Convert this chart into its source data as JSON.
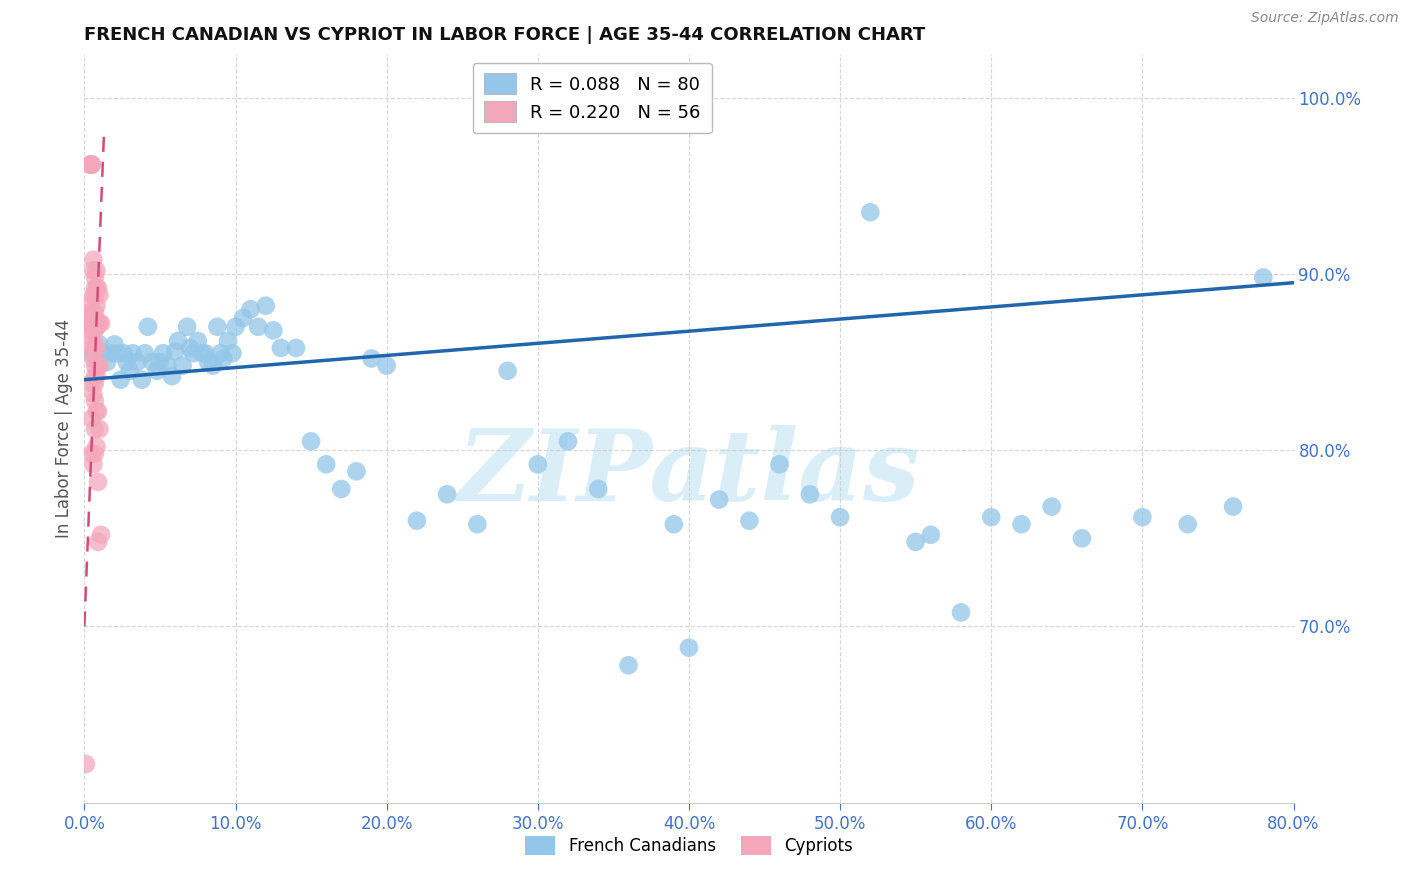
{
  "title": "FRENCH CANADIAN VS CYPRIOT IN LABOR FORCE | AGE 35-44 CORRELATION CHART",
  "source": "Source: ZipAtlas.com",
  "ylabel_left": "In Labor Force | Age 35-44",
  "xlim": [
    0.0,
    0.8
  ],
  "ylim": [
    0.6,
    1.025
  ],
  "blue_R": 0.088,
  "blue_N": 80,
  "pink_R": 0.22,
  "pink_N": 56,
  "blue_color": "#93c6e8",
  "blue_line_color": "#2166ac",
  "pink_color": "#f4a7bb",
  "pink_line_color": "#d44a7a",
  "watermark": "ZIPatlas",
  "watermark_color": "#daeef8",
  "legend_label_blue": "French Canadians",
  "legend_label_pink": "Cypriots",
  "blue_x": [
    0.005,
    0.008,
    0.01,
    0.012,
    0.015,
    0.018,
    0.02,
    0.022,
    0.024,
    0.026,
    0.028,
    0.03,
    0.032,
    0.035,
    0.038,
    0.04,
    0.042,
    0.045,
    0.048,
    0.05,
    0.052,
    0.055,
    0.058,
    0.06,
    0.062,
    0.065,
    0.068,
    0.07,
    0.072,
    0.075,
    0.078,
    0.08,
    0.082,
    0.085,
    0.088,
    0.09,
    0.092,
    0.095,
    0.098,
    0.1,
    0.105,
    0.11,
    0.115,
    0.12,
    0.125,
    0.13,
    0.14,
    0.15,
    0.16,
    0.17,
    0.18,
    0.19,
    0.2,
    0.22,
    0.24,
    0.26,
    0.28,
    0.3,
    0.32,
    0.34,
    0.36,
    0.39,
    0.4,
    0.42,
    0.44,
    0.46,
    0.48,
    0.5,
    0.52,
    0.55,
    0.56,
    0.58,
    0.6,
    0.62,
    0.64,
    0.66,
    0.7,
    0.73,
    0.76,
    0.78
  ],
  "blue_y": [
    0.855,
    0.87,
    0.86,
    0.855,
    0.85,
    0.855,
    0.86,
    0.855,
    0.84,
    0.855,
    0.85,
    0.845,
    0.855,
    0.85,
    0.84,
    0.855,
    0.87,
    0.85,
    0.845,
    0.85,
    0.855,
    0.848,
    0.842,
    0.856,
    0.862,
    0.848,
    0.87,
    0.858,
    0.855,
    0.862,
    0.855,
    0.855,
    0.85,
    0.848,
    0.87,
    0.855,
    0.852,
    0.862,
    0.855,
    0.87,
    0.875,
    0.88,
    0.87,
    0.882,
    0.868,
    0.858,
    0.858,
    0.805,
    0.792,
    0.778,
    0.788,
    0.852,
    0.848,
    0.76,
    0.775,
    0.758,
    0.845,
    0.792,
    0.805,
    0.778,
    0.678,
    0.758,
    0.688,
    0.772,
    0.76,
    0.792,
    0.775,
    0.762,
    0.935,
    0.748,
    0.752,
    0.708,
    0.762,
    0.758,
    0.768,
    0.75,
    0.762,
    0.758,
    0.768,
    0.898
  ],
  "pink_x": [
    0.001,
    0.002,
    0.002,
    0.003,
    0.003,
    0.004,
    0.004,
    0.004,
    0.005,
    0.005,
    0.005,
    0.005,
    0.005,
    0.005,
    0.005,
    0.005,
    0.006,
    0.006,
    0.006,
    0.006,
    0.006,
    0.006,
    0.006,
    0.006,
    0.007,
    0.007,
    0.007,
    0.007,
    0.007,
    0.007,
    0.007,
    0.007,
    0.007,
    0.007,
    0.007,
    0.007,
    0.008,
    0.008,
    0.008,
    0.008,
    0.008,
    0.008,
    0.008,
    0.008,
    0.009,
    0.009,
    0.009,
    0.009,
    0.009,
    0.009,
    0.01,
    0.01,
    0.01,
    0.01,
    0.011,
    0.011
  ],
  "pink_y": [
    0.622,
    0.882,
    0.868,
    0.878,
    0.872,
    0.962,
    0.962,
    0.962,
    0.962,
    0.962,
    0.872,
    0.868,
    0.858,
    0.838,
    0.818,
    0.798,
    0.908,
    0.902,
    0.888,
    0.878,
    0.862,
    0.852,
    0.832,
    0.792,
    0.898,
    0.892,
    0.888,
    0.878,
    0.868,
    0.858,
    0.848,
    0.842,
    0.838,
    0.828,
    0.812,
    0.798,
    0.902,
    0.892,
    0.882,
    0.872,
    0.858,
    0.842,
    0.822,
    0.802,
    0.892,
    0.872,
    0.848,
    0.822,
    0.782,
    0.748,
    0.888,
    0.872,
    0.848,
    0.812,
    0.752,
    0.872
  ]
}
